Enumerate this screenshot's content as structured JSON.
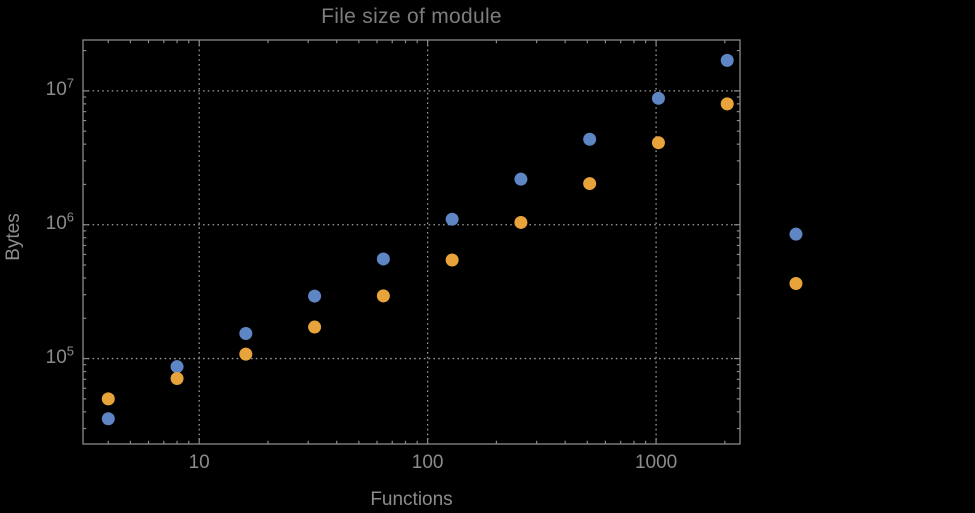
{
  "window": {
    "background": "#000000"
  },
  "chart_data": {
    "type": "scatter",
    "title": "File size of module",
    "xlabel": "Functions",
    "ylabel": "Bytes",
    "x_scale": "log",
    "y_scale": "log",
    "grid": "dotted-at-decades",
    "legend": "none",
    "x_range": [
      3.1,
      2330
    ],
    "y_range": [
      23000,
      24000000
    ],
    "x_major_ticks": [
      10,
      100,
      1000
    ],
    "y_major_ticks": [
      100000,
      1000000,
      10000000
    ],
    "minor_ticks": "log-2-through-9-all-four-edges",
    "x": [
      4,
      8,
      16,
      32,
      64,
      128,
      256,
      512,
      1024,
      2048,
      4096
    ],
    "series": [
      {
        "name": "series-blue",
        "color": "#5e86c4",
        "values": [
          35500,
          87000,
          154000,
          293000,
          555000,
          1100000,
          2190000,
          4350000,
          8800000,
          16900000,
          850000
        ]
      },
      {
        "name": "series-orange",
        "color": "#e8a33b",
        "values": [
          50000,
          71000,
          108000,
          172000,
          294000,
          545000,
          1040000,
          2030000,
          4100000,
          8000000,
          364000
        ]
      }
    ],
    "colors": {
      "axis": "#8a8a8a",
      "grid": "#999999",
      "text": "#8c8c8c",
      "title": "#7d7d7d",
      "background": "#000000"
    }
  }
}
